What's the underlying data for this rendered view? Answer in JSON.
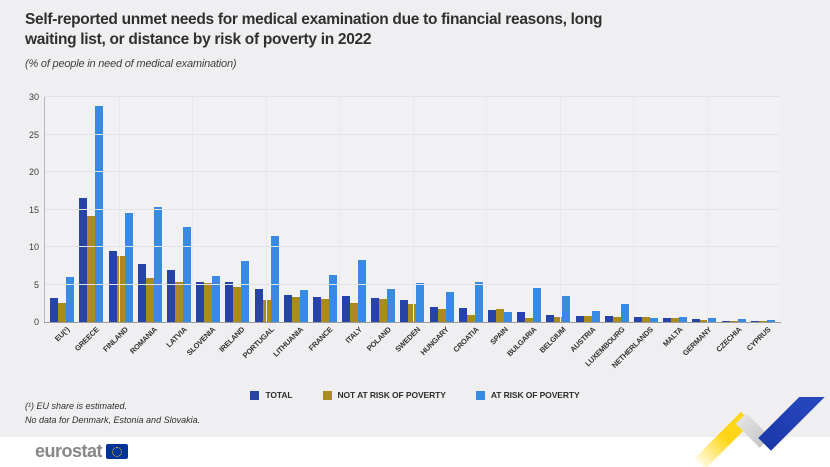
{
  "chart_data": {
    "type": "bar",
    "title": "Self-reported unmet needs for medical examination due to financial reasons, long waiting list, or distance by risk of poverty in 2022",
    "subtitle": "(% of people in need of medical examination)",
    "categories": [
      "EU(¹)",
      "GREECE",
      "FINLAND",
      "ROMANIA",
      "LATVIA",
      "SLOVENIA",
      "IRELAND",
      "PORTUGAL",
      "LITHUANIA",
      "FRANCE",
      "ITALY",
      "POLAND",
      "SWEDEN",
      "HUNGARY",
      "CROATIA",
      "SPAIN",
      "BULGARIA",
      "BELGIUM",
      "AUSTRIA",
      "LUXEMBOURG",
      "NETHERLANDS",
      "MALTA",
      "GERMANY",
      "CZECHIA",
      "CYPRUS"
    ],
    "series": [
      {
        "name": "TOTAL",
        "color": "#2644A7",
        "values": [
          3.2,
          16.6,
          9.5,
          7.8,
          7.0,
          5.4,
          5.3,
          4.4,
          3.6,
          3.4,
          3.5,
          3.2,
          2.9,
          2.0,
          1.9,
          1.6,
          1.3,
          0.9,
          0.8,
          0.8,
          0.7,
          0.6,
          0.4,
          0.2,
          0.1
        ]
      },
      {
        "name": "NOT AT RISK OF POVERTY",
        "color": "#AA8C1E",
        "values": [
          2.6,
          14.2,
          8.8,
          5.9,
          5.3,
          5.2,
          4.7,
          2.9,
          3.4,
          3.1,
          2.5,
          3.1,
          2.4,
          1.7,
          1.0,
          1.8,
          0.5,
          0.7,
          0.8,
          0.7,
          0.7,
          0.6,
          0.3,
          0.2,
          0.1
        ]
      },
      {
        "name": "AT RISK OF POVERTY",
        "color": "#388AE2",
        "values": [
          6.0,
          28.8,
          14.5,
          15.4,
          12.7,
          6.2,
          8.1,
          11.5,
          4.3,
          6.3,
          8.3,
          4.4,
          5.2,
          4.0,
          5.3,
          1.4,
          4.5,
          3.5,
          1.5,
          2.4,
          0.5,
          0.7,
          0.5,
          0.4,
          0.3
        ]
      }
    ],
    "ylim": [
      0,
      30
    ],
    "y_ticks": [
      0,
      5,
      10,
      15,
      20,
      25,
      30
    ],
    "grid": true,
    "legend_position": "bottom"
  },
  "footnotes": {
    "line1": "(¹) EU share is estimated.",
    "line2": "No data for Denmark, Estonia and Slovakia."
  },
  "logo": {
    "text": "eurostat"
  }
}
